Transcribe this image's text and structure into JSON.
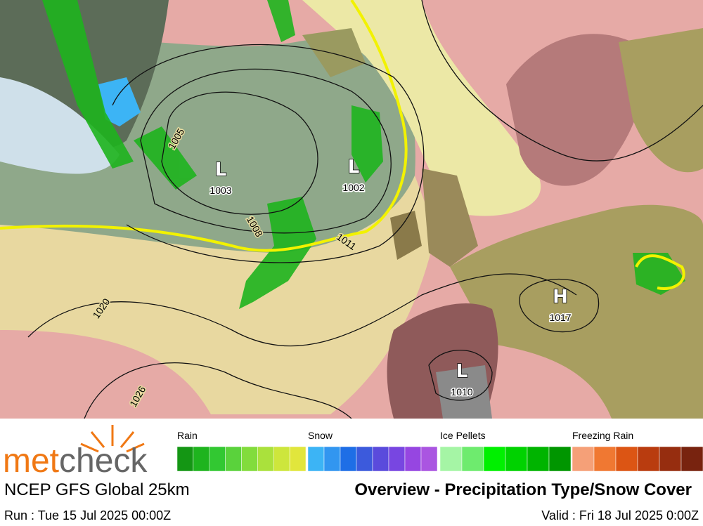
{
  "map": {
    "pressure_centers": [
      {
        "symbol": "L",
        "value": "1003"
      },
      {
        "symbol": "L",
        "value": "1002"
      },
      {
        "symbol": "H",
        "value": "1017"
      },
      {
        "symbol": "L",
        "value": "1010"
      }
    ],
    "isobar_labels": [
      "1005",
      "1008",
      "1011",
      "1020",
      "1026"
    ]
  },
  "legend": {
    "groups": [
      {
        "label": "Rain",
        "colors": [
          "#149614",
          "#1eb41e",
          "#32c832",
          "#5ad23c",
          "#82dc3c",
          "#aae13c",
          "#cde63c",
          "#e1e63c"
        ]
      },
      {
        "label": "Snow",
        "colors": [
          "#3cb4f5",
          "#3296f0",
          "#1e6ee6",
          "#3c5adc",
          "#5a4bdc",
          "#7846e1",
          "#9646e1",
          "#aa55e1"
        ]
      },
      {
        "label": "Ice Pellets",
        "colors": [
          "#a5f5a5",
          "#6eeb6e",
          "#00f000",
          "#00d200",
          "#00b400",
          "#009600"
        ]
      },
      {
        "label": "Freezing Rain",
        "colors": [
          "#f5a078",
          "#f07832",
          "#dc5514",
          "#b93c0f",
          "#962d0f",
          "#78230f"
        ]
      }
    ]
  },
  "logo": {
    "part1": "met",
    "part2": "check"
  },
  "model": "NCEP GFS Global 25km",
  "title": "Overview - Precipitation Type/Snow Cover",
  "run": "Run : Tue 15 Jul 2025 00:00Z",
  "valid": "Valid : Fri 18 Jul 2025 0:00Z"
}
